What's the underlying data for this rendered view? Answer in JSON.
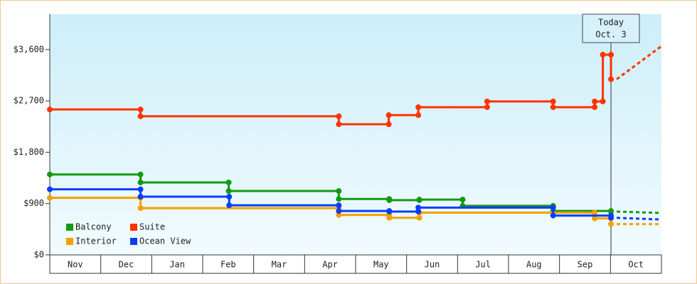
{
  "chart_data": {
    "type": "step-line",
    "categories": [
      "Nov",
      "Dec",
      "Jan",
      "Feb",
      "Mar",
      "Apr",
      "May",
      "Jun",
      "Jul",
      "Aug",
      "Sep",
      "Oct"
    ],
    "xlim": [
      0,
      12
    ],
    "xticks": [
      0,
      1,
      2,
      3,
      4,
      5,
      6,
      7,
      8,
      9,
      10,
      11,
      12
    ],
    "ylim": [
      0,
      4220
    ],
    "yticks": [
      {
        "value": 0,
        "label": "$0"
      },
      {
        "value": 900,
        "label": "$900"
      },
      {
        "value": 1800,
        "label": "$1,800"
      },
      {
        "value": 2700,
        "label": "$2,700"
      },
      {
        "value": 3600,
        "label": "$3,600"
      }
    ],
    "series": [
      {
        "name": "Balcony",
        "color": "#129a12",
        "x": [
          0,
          1.78,
          3.51,
          5.67,
          6.66,
          7.25,
          8.1,
          9.875,
          11.01
        ],
        "values": [
          1410,
          1270,
          1120,
          980,
          960,
          970,
          860,
          770,
          760
        ],
        "forecast": 735
      },
      {
        "name": "Suite",
        "color": "#ff3300",
        "x": [
          0,
          1.78,
          5.67,
          6.65,
          7.23,
          8.58,
          9.875,
          10.69,
          10.85,
          11.01
        ],
        "values": [
          2550,
          2430,
          2290,
          2450,
          2590,
          2690,
          2590,
          2690,
          3510,
          3080
        ],
        "forecast": 3660
      },
      {
        "name": "Interior",
        "color": "#f5a000",
        "x": [
          0,
          1.78,
          5.67,
          6.66,
          7.25,
          10.69,
          11.01
        ],
        "values": [
          1000,
          820,
          700,
          650,
          740,
          640,
          540
        ],
        "forecast": 540
      },
      {
        "name": "Ocean View",
        "color": "#0a3cff",
        "x": [
          0,
          1.78,
          3.52,
          5.67,
          6.66,
          7.23,
          9.875,
          11.01
        ],
        "values": [
          1150,
          1020,
          870,
          770,
          760,
          830,
          690,
          650
        ],
        "forecast": 620
      }
    ],
    "annotation": {
      "x": 11.01,
      "lines": [
        "Today",
        "Oct. 3"
      ]
    }
  }
}
